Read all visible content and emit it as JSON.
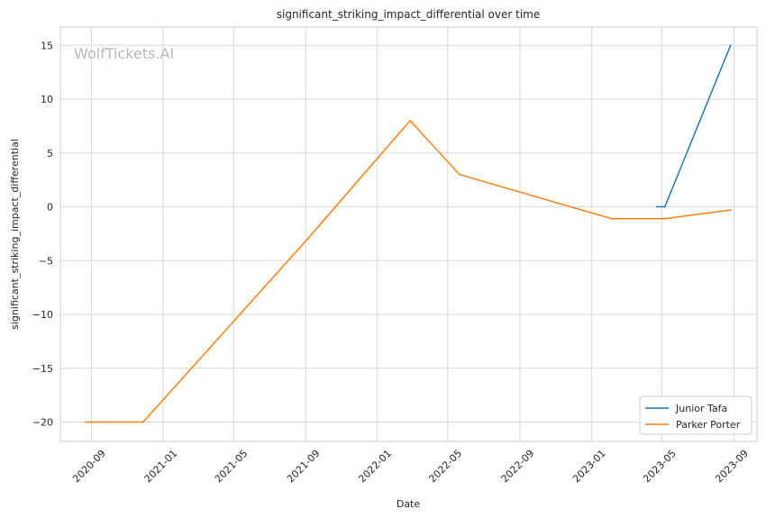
{
  "watermark": "WolfTickets.AI",
  "chart_data": {
    "type": "line",
    "title": "significant_striking_impact_differential over time",
    "xlabel": "Date",
    "ylabel": "significant_striking_impact_differential",
    "x_axis_type": "date",
    "xlim": [
      "2020-07-10",
      "2023-10-10"
    ],
    "ylim": [
      -21.8,
      16.7
    ],
    "x_ticks": [
      {
        "date": "2020-09-01",
        "label": "2020-09"
      },
      {
        "date": "2021-01-01",
        "label": "2021-01"
      },
      {
        "date": "2021-05-01",
        "label": "2021-05"
      },
      {
        "date": "2021-09-01",
        "label": "2021-09"
      },
      {
        "date": "2022-01-01",
        "label": "2022-01"
      },
      {
        "date": "2022-05-01",
        "label": "2022-05"
      },
      {
        "date": "2022-09-01",
        "label": "2022-09"
      },
      {
        "date": "2023-01-01",
        "label": "2023-01"
      },
      {
        "date": "2023-05-01",
        "label": "2023-05"
      },
      {
        "date": "2023-09-01",
        "label": "2023-09"
      }
    ],
    "y_ticks": [
      {
        "value": 15,
        "label": "15"
      },
      {
        "value": 10,
        "label": "10"
      },
      {
        "value": 5,
        "label": "5"
      },
      {
        "value": 0,
        "label": "0"
      },
      {
        "value": -5,
        "label": "−5"
      },
      {
        "value": -10,
        "label": "−10"
      },
      {
        "value": -15,
        "label": "−15"
      },
      {
        "value": -20,
        "label": "−20"
      }
    ],
    "grid": true,
    "legend_position": "lower right",
    "series": [
      {
        "name": "Junior Tafa",
        "color": "#1f77b4",
        "points": [
          {
            "x": "2023-04-22",
            "y": 0
          },
          {
            "x": "2023-05-06",
            "y": 0
          },
          {
            "x": "2023-08-26",
            "y": 15
          }
        ]
      },
      {
        "name": "Parker Porter",
        "color": "#ff7f0e",
        "points": [
          {
            "x": "2020-08-22",
            "y": -20
          },
          {
            "x": "2020-11-28",
            "y": -20
          },
          {
            "x": "2021-09-04",
            "y": -3
          },
          {
            "x": "2022-02-26",
            "y": 8
          },
          {
            "x": "2022-05-21",
            "y": 3
          },
          {
            "x": "2023-02-04",
            "y": -1.1
          },
          {
            "x": "2023-05-06",
            "y": -1.1
          },
          {
            "x": "2023-08-26",
            "y": -0.3
          }
        ]
      }
    ]
  }
}
